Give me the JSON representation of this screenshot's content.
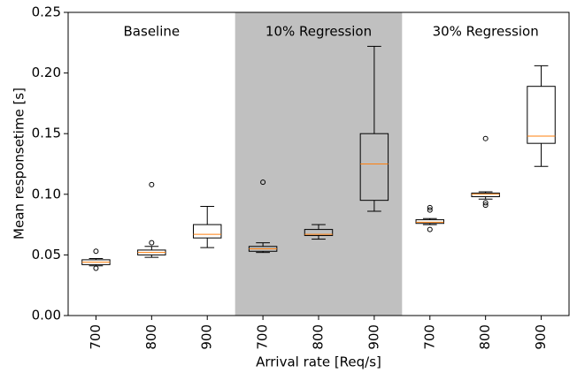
{
  "chart_data": {
    "type": "box",
    "xlabel": "Arrival rate [Req/s]",
    "ylabel": "Mean responsetime [s]",
    "categories": [
      "700",
      "800",
      "900",
      "700",
      "800",
      "900",
      "700",
      "800",
      "900"
    ],
    "groups": [
      {
        "label": "Baseline",
        "shaded": false
      },
      {
        "label": "10% Regression",
        "shaded": true
      },
      {
        "label": "30% Regression",
        "shaded": false
      }
    ],
    "shade_color": "#c0c0c0",
    "box_color": "#000000",
    "median_color": "#ff7f0e",
    "boxes": [
      {
        "whislo": 0.041,
        "q1": 0.042,
        "med": 0.044,
        "q3": 0.046,
        "whishi": 0.047,
        "fliers": [
          0.053,
          0.039
        ]
      },
      {
        "whislo": 0.048,
        "q1": 0.05,
        "med": 0.052,
        "q3": 0.054,
        "whishi": 0.057,
        "fliers": [
          0.108,
          0.06
        ]
      },
      {
        "whislo": 0.056,
        "q1": 0.064,
        "med": 0.067,
        "q3": 0.075,
        "whishi": 0.09,
        "fliers": []
      },
      {
        "whislo": 0.052,
        "q1": 0.053,
        "med": 0.055,
        "q3": 0.057,
        "whishi": 0.06,
        "fliers": [
          0.11
        ]
      },
      {
        "whislo": 0.063,
        "q1": 0.066,
        "med": 0.067,
        "q3": 0.071,
        "whishi": 0.075,
        "fliers": []
      },
      {
        "whislo": 0.086,
        "q1": 0.095,
        "med": 0.125,
        "q3": 0.15,
        "whishi": 0.222,
        "fliers": []
      },
      {
        "whislo": 0.075,
        "q1": 0.076,
        "med": 0.077,
        "q3": 0.079,
        "whishi": 0.08,
        "fliers": [
          0.089,
          0.087,
          0.071
        ]
      },
      {
        "whislo": 0.096,
        "q1": 0.098,
        "med": 0.1,
        "q3": 0.101,
        "whishi": 0.102,
        "fliers": [
          0.146,
          0.093,
          0.091
        ]
      },
      {
        "whislo": 0.123,
        "q1": 0.142,
        "med": 0.148,
        "q3": 0.189,
        "whishi": 0.206,
        "fliers": []
      }
    ],
    "ylim": [
      0,
      0.25
    ],
    "yticks": [
      {
        "value": 0,
        "label": "0.00"
      },
      {
        "value": 0.05,
        "label": "0.05"
      },
      {
        "value": 0.1,
        "label": "0.10"
      },
      {
        "value": 0.15,
        "label": "0.15"
      },
      {
        "value": 0.2,
        "label": "0.20"
      },
      {
        "value": 0.25,
        "label": "0.25"
      }
    ]
  }
}
